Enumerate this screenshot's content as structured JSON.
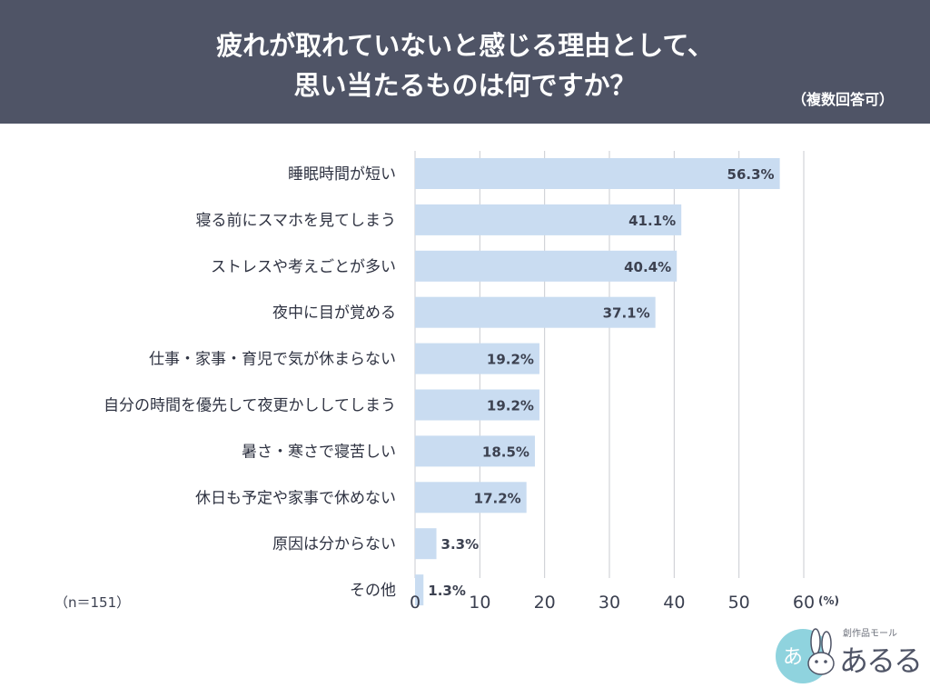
{
  "header": {
    "title_line1": "疲れが取れていないと感じる理由として、",
    "title_line2": "思い当たるものは何ですか？",
    "subtitle": "（複数回答可）"
  },
  "note": "（n＝151）",
  "logo": {
    "tagline": "創作品モール",
    "name": "あるる",
    "icon": "rabbit-logo-icon"
  },
  "colors": {
    "header_bg": "#4f5466",
    "bar": "#c9dcf1",
    "logo_circle": "#8fd3de"
  },
  "chart_data": {
    "type": "bar",
    "orientation": "horizontal",
    "title": "疲れが取れていないと感じる理由として、思い当たるものは何ですか？",
    "subtitle": "（複数回答可）",
    "categories": [
      "睡眠時間が短い",
      "寝る前にスマホを見てしまう",
      "ストレスや考えごとが多い",
      "夜中に目が覚める",
      "仕事・家事・育児で気が休まらない",
      "自分の時間を優先して夜更かししてしまう",
      "暑さ・寒さで寝苦しい",
      "休日も予定や家事で休めない",
      "原因は分からない",
      "その他"
    ],
    "values": [
      56.3,
      41.1,
      40.4,
      37.1,
      19.2,
      19.2,
      18.5,
      17.2,
      3.3,
      1.3
    ],
    "value_labels": [
      "56.3%",
      "41.1%",
      "40.4%",
      "37.1%",
      "19.2%",
      "19.2%",
      "18.5%",
      "17.2%",
      "3.3%",
      "1.3%"
    ],
    "xlim": [
      0,
      60
    ],
    "x_ticks": [
      0,
      10,
      20,
      30,
      40,
      50,
      60
    ],
    "x_tick_labels": [
      "0",
      "10",
      "20",
      "30",
      "40",
      "50",
      "60"
    ],
    "x_unit": "(%)",
    "grid": true,
    "legend": "none"
  }
}
